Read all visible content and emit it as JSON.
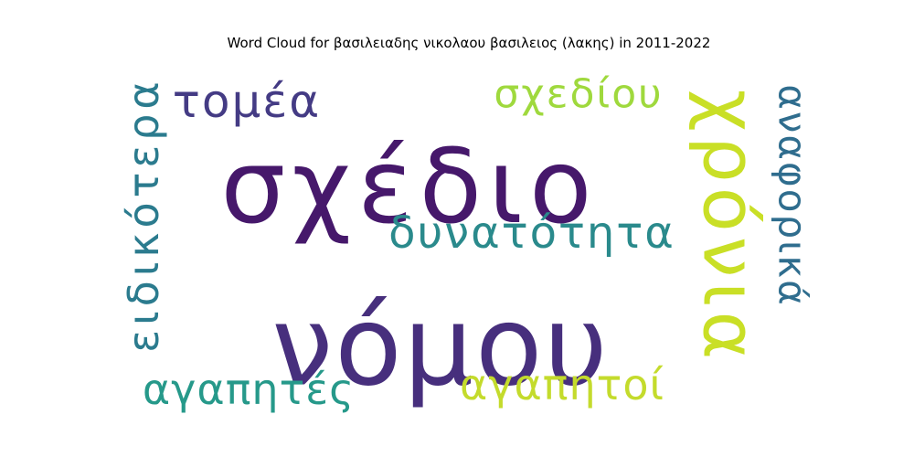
{
  "chart_data": {
    "type": "wordcloud",
    "title": "Word Cloud for βασιλειαδης νικολαου βασιλειος (λακης) in 2011-2022",
    "words": [
      {
        "text": "σχέδιο",
        "weight": 100,
        "color": "#46186b",
        "orientation": "horizontal"
      },
      {
        "text": "νόμου",
        "weight": 95,
        "color": "#472f7d",
        "orientation": "horizontal"
      },
      {
        "text": "χρόνια",
        "weight": 70,
        "color": "#c9df26",
        "orientation": "vertical"
      },
      {
        "text": "δυνατότητα",
        "weight": 42,
        "color": "#2a8a8c",
        "orientation": "horizontal"
      },
      {
        "text": "τομέα",
        "weight": 38,
        "color": "#443b84",
        "orientation": "horizontal"
      },
      {
        "text": "σχεδίου",
        "weight": 36,
        "color": "#9fd93d",
        "orientation": "horizontal"
      },
      {
        "text": "ειδικότερα",
        "weight": 36,
        "color": "#2b7b8e",
        "orientation": "vertical"
      },
      {
        "text": "αναφορικά",
        "weight": 35,
        "color": "#2f6d8e",
        "orientation": "vertical"
      },
      {
        "text": "αγαπητές",
        "weight": 35,
        "color": "#26998a",
        "orientation": "horizontal"
      },
      {
        "text": "αγαπητοί",
        "weight": 35,
        "color": "#c4db2c",
        "orientation": "horizontal"
      }
    ]
  }
}
